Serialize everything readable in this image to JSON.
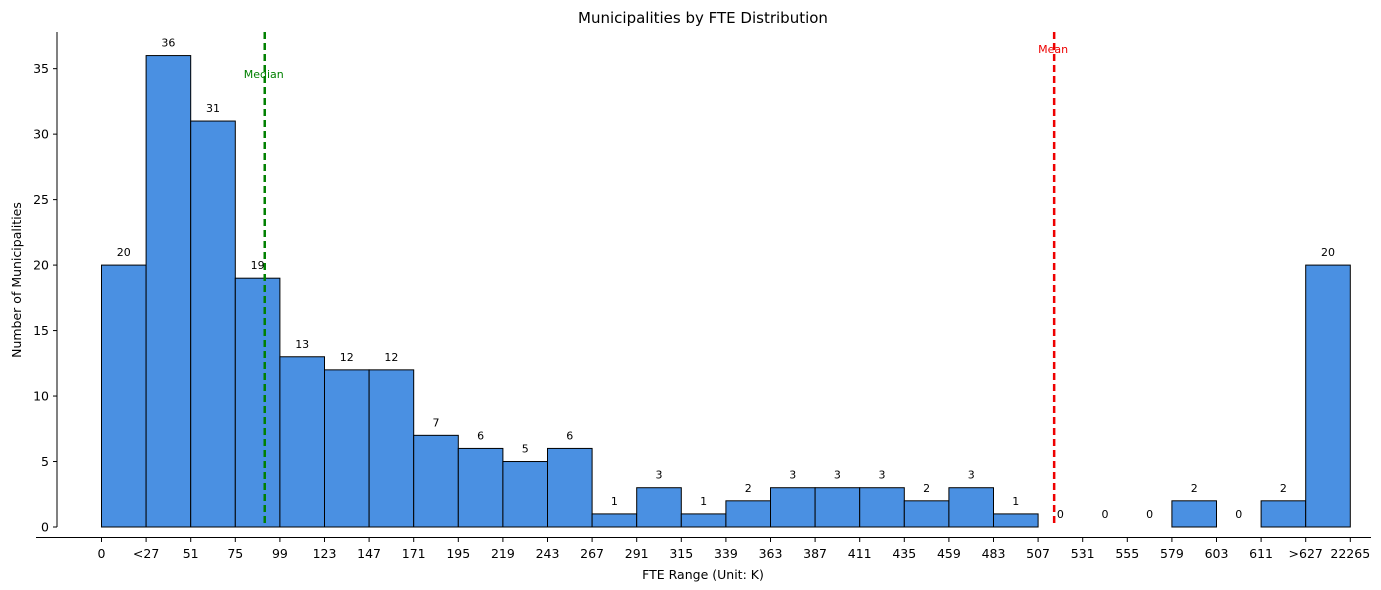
{
  "chart_data": {
    "type": "bar",
    "title": "Municipalities by FTE Distribution",
    "xlabel": "FTE Range (Unit: K)",
    "ylabel": "Number of Municipalities",
    "edge_labels": [
      "0",
      "<27",
      "51",
      "75",
      "99",
      "123",
      "147",
      "171",
      "195",
      "219",
      "243",
      "267",
      "291",
      "315",
      "339",
      "363",
      "387",
      "411",
      "435",
      "459",
      "483",
      "507",
      "531",
      "555",
      "579",
      "603",
      "611",
      ">627",
      "22265"
    ],
    "values": [
      20,
      36,
      31,
      19,
      13,
      12,
      12,
      7,
      6,
      5,
      6,
      1,
      3,
      1,
      2,
      3,
      3,
      3,
      2,
      3,
      1,
      0,
      0,
      0,
      2,
      0,
      2,
      20
    ],
    "ylim": [
      0,
      37.8
    ],
    "yticks": [
      0,
      5,
      10,
      15,
      20,
      25,
      30,
      35
    ],
    "bar_color": "#4a90e2",
    "bar_edge_color": "#000000",
    "reference_lines": [
      {
        "label": "Median",
        "at_edge_index": 3.66,
        "color": "#008000"
      },
      {
        "label": "Mean",
        "at_edge_index": 21.36,
        "color": "#ee0000"
      }
    ],
    "grid": false,
    "legend": "none"
  }
}
